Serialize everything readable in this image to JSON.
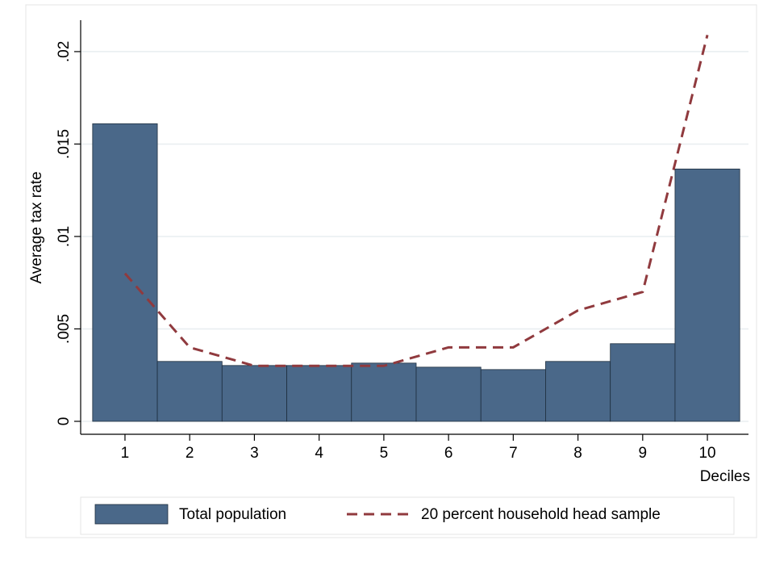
{
  "chart_data": {
    "type": "bar_line",
    "xlabel": "Deciles",
    "ylabel": "Average tax rate",
    "x": [
      1,
      2,
      3,
      4,
      5,
      6,
      7,
      8,
      9,
      10
    ],
    "series": [
      {
        "name": "Total population",
        "type": "bar",
        "color": "#4a6889",
        "values": [
          0.0161,
          0.00324,
          0.00302,
          0.00302,
          0.00315,
          0.00293,
          0.0028,
          0.00324,
          0.0042,
          0.01365
        ]
      },
      {
        "name": "20 percent household head sample",
        "type": "line",
        "color": "#903a3e",
        "values": [
          0.008,
          0.004,
          0.003,
          0.003,
          0.003,
          0.004,
          0.004,
          0.006,
          0.007,
          0.0209
        ]
      }
    ],
    "xlim": [
      0.315,
      10.635
    ],
    "xticks": [
      1,
      2,
      3,
      4,
      5,
      6,
      7,
      8,
      9,
      10
    ],
    "ylim": [
      -0.0007,
      0.0217
    ],
    "yticks": [
      0,
      {
        "value": 0.005,
        "label": ".005"
      },
      {
        "value": 0.01,
        "label": ".01"
      },
      {
        "value": 0.015,
        "label": ".015"
      },
      {
        "value": 0.02,
        "label": ".02"
      }
    ],
    "grid": true,
    "legend": "bottom"
  }
}
